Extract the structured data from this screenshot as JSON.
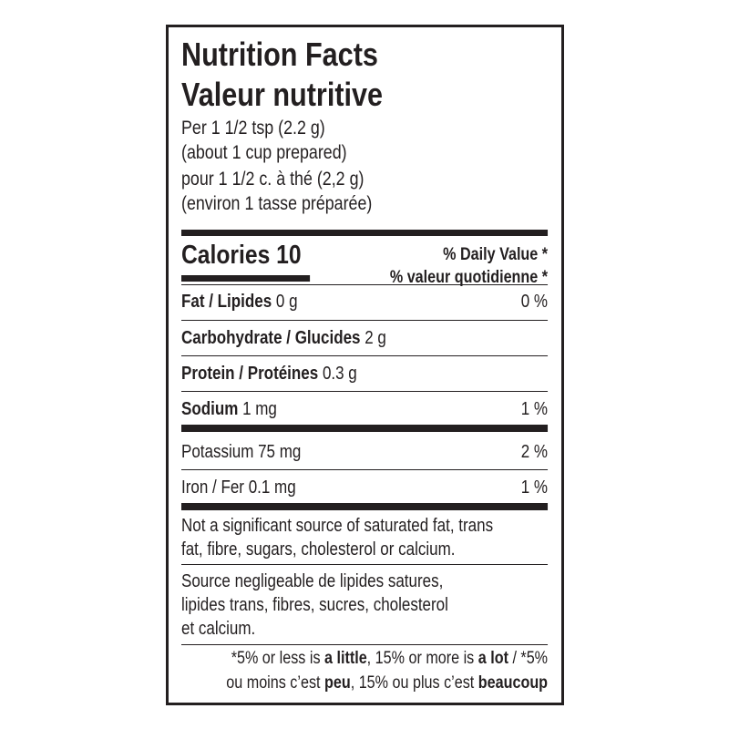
{
  "header": {
    "title": "Nutrition Facts",
    "title_fr": "Valeur nutritive",
    "serving": [
      "Per 1 1/2 tsp (2.2 g)",
      "(about 1 cup prepared)",
      "pour 1 1/2 c. à thé (2,2 g)",
      "(environ 1 tasse préparée)"
    ]
  },
  "calories": {
    "label": "Calories",
    "amount": "10"
  },
  "daily_value": {
    "en": "% Daily Value *",
    "fr": "% valeur quotidienne *"
  },
  "nutrients": [
    {
      "name": "Fat / Lipides",
      "amount": "0 g",
      "dv": "0 %"
    },
    {
      "name": "Carbohydrate / Glucides",
      "amount": "2 g"
    },
    {
      "name": "Protein / Protéines",
      "amount": "0.3 g"
    },
    {
      "name": "Sodium",
      "amount": "1 mg",
      "dv": "1 %"
    },
    {
      "name": "Potassium",
      "amount": "75 mg",
      "dv": "2 %"
    },
    {
      "name": "Iron / Fer",
      "amount": "0.1 mg",
      "dv": "1 %"
    }
  ],
  "notes": {
    "en": [
      "Not a significant source of saturated fat, trans",
      "fat, fibre, sugars, cholesterol or calcium."
    ],
    "fr": [
      "Source negligeable de lipides satures,",
      "lipides trans, fibres, sucres, cholesterol",
      "et calcium."
    ]
  },
  "footnote": {
    "line1": [
      "*5% or less is ",
      "a little",
      ", 15% or more is ",
      "a lot",
      " / *5%"
    ],
    "line2": [
      "ou moins c’est ",
      "peu",
      ", 15% ou plus c’est ",
      "beaucoup"
    ]
  }
}
